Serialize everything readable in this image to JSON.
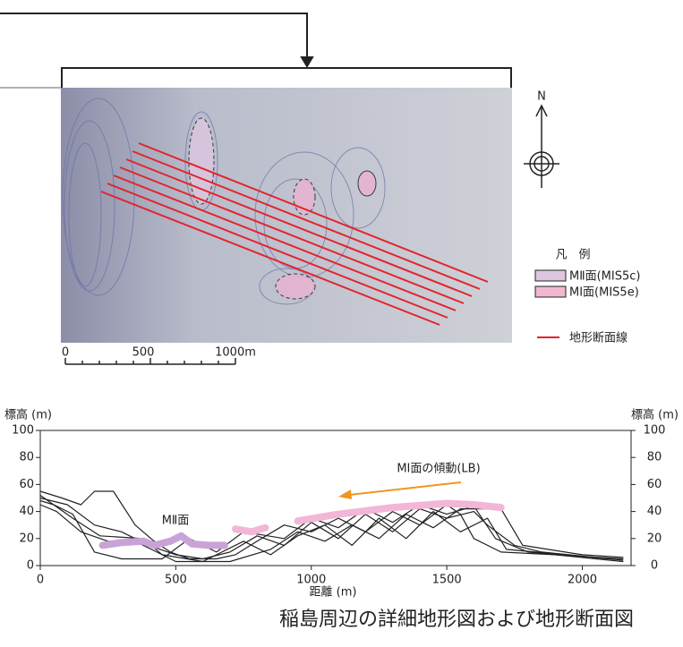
{
  "map": {
    "north": "N",
    "legend_title": "凡　例",
    "legend": [
      "MⅡ面(MIS5c)",
      "MⅠ面(MIS5e)",
      "地形断面線"
    ],
    "scale": [
      "0",
      "500",
      "1000m"
    ]
  },
  "chart_data": {
    "type": "line",
    "ylabel": "標高 (m)",
    "y2label": "標高 (m)",
    "xlabel": "距離 (m)",
    "annotations": [
      "MⅡ面",
      "MⅠ面の傾動(LB)"
    ],
    "xlim": [
      0,
      2180
    ],
    "xticks": [
      0,
      500,
      1000,
      1500,
      2000
    ],
    "ylim": [
      0,
      100
    ],
    "yticks": [
      0,
      20,
      40,
      60,
      80,
      100
    ],
    "y2lim": [
      0,
      100
    ],
    "y2ticks": [
      0,
      20,
      40,
      60,
      80,
      100
    ],
    "series": [
      {
        "color": "#222222",
        "x": [
          0,
          80,
          150,
          200,
          270,
          350,
          420,
          480,
          550,
          650,
          720,
          800,
          900,
          1000,
          1100,
          1200,
          1300,
          1400,
          1500,
          1550,
          1600,
          1700,
          1900,
          2150
        ],
        "values": [
          55,
          50,
          45,
          55,
          55,
          30,
          18,
          10,
          5,
          5,
          8,
          18,
          30,
          25,
          35,
          25,
          40,
          30,
          45,
          38,
          20,
          10,
          8,
          5
        ]
      },
      {
        "color": "#222222",
        "x": [
          0,
          100,
          200,
          300,
          400,
          500,
          600,
          700,
          800,
          900,
          1000,
          1100,
          1200,
          1300,
          1400,
          1500,
          1600,
          1650,
          1750,
          1850,
          2150
        ],
        "values": [
          50,
          45,
          30,
          25,
          15,
          8,
          5,
          10,
          22,
          15,
          32,
          20,
          38,
          25,
          42,
          35,
          40,
          30,
          15,
          10,
          4
        ]
      },
      {
        "color": "#222222",
        "x": [
          0,
          60,
          150,
          250,
          350,
          430,
          500,
          700,
          850,
          950,
          1050,
          1150,
          1250,
          1350,
          1450,
          1550,
          1700,
          1780,
          2000,
          2150
        ],
        "values": [
          45,
          40,
          25,
          18,
          18,
          10,
          3,
          3,
          12,
          25,
          18,
          30,
          20,
          38,
          28,
          42,
          42,
          15,
          8,
          6
        ]
      },
      {
        "color": "#222222",
        "x": [
          0,
          120,
          220,
          380,
          450,
          600,
          750,
          850,
          950,
          1050,
          1150,
          1250,
          1350,
          1450,
          1550,
          1650,
          1720,
          2100
        ],
        "values": [
          52,
          35,
          22,
          20,
          8,
          3,
          18,
          8,
          22,
          30,
          15,
          35,
          20,
          40,
          25,
          35,
          12,
          5
        ]
      },
      {
        "color": "#222222",
        "x": [
          0,
          50,
          120,
          200,
          300,
          450,
          550,
          650,
          750,
          900,
          1000,
          1100,
          1200,
          1300,
          1400,
          1500,
          1600,
          1680,
          1800,
          2150
        ],
        "values": [
          48,
          45,
          38,
          10,
          5,
          5,
          20,
          10,
          25,
          20,
          35,
          28,
          42,
          32,
          45,
          38,
          44,
          20,
          10,
          3
        ]
      },
      {
        "color": "#f2b6d6",
        "x": [
          720,
          780,
          830,
          890,
          950,
          1100,
          1300,
          1500,
          1600,
          1700
        ],
        "values": [
          27,
          25,
          28,
          null,
          33,
          38,
          43,
          46,
          45,
          43
        ]
      },
      {
        "color": "#c9a3d6",
        "x": [
          230,
          300,
          380,
          420,
          480,
          520,
          560,
          620,
          680
        ],
        "values": [
          15,
          17,
          18,
          15,
          18,
          22,
          16,
          15,
          15
        ]
      }
    ]
  },
  "caption": "稲島周辺の詳細地形図および地形断面図"
}
